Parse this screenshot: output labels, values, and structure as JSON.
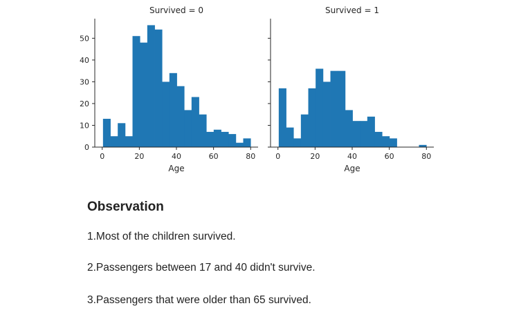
{
  "chart_data": [
    {
      "type": "bar",
      "title": "Survived = 0",
      "xlabel": "Age",
      "ylabel": "",
      "xlim": [
        -4,
        84
      ],
      "ylim": [
        0,
        59
      ],
      "bin_edges": [
        0.42,
        4.4,
        8.37,
        12.35,
        16.33,
        20.3,
        24.28,
        28.26,
        32.23,
        36.21,
        40.19,
        44.17,
        48.14,
        52.12,
        56.1,
        60.07,
        64.05,
        68.03,
        72.0,
        75.98,
        79.96
      ],
      "values": [
        13,
        5,
        11,
        5,
        51,
        48,
        56,
        54,
        30,
        34,
        28,
        17,
        23,
        15,
        7,
        8,
        7,
        6,
        2,
        4
      ],
      "xticks": [
        0,
        20,
        40,
        60,
        80
      ],
      "yticks": [
        0,
        10,
        20,
        30,
        40,
        50
      ]
    },
    {
      "type": "bar",
      "title": "Survived = 1",
      "xlabel": "Age",
      "ylabel": "",
      "xlim": [
        -4,
        84
      ],
      "ylim": [
        0,
        59
      ],
      "bin_edges": [
        0.42,
        4.4,
        8.37,
        12.35,
        16.33,
        20.3,
        24.28,
        28.26,
        32.23,
        36.21,
        40.19,
        44.17,
        48.14,
        52.12,
        56.1,
        60.07,
        64.05,
        68.03,
        72.0,
        75.98,
        79.96
      ],
      "values": [
        27,
        9,
        4,
        15,
        27,
        36,
        30,
        35,
        35,
        17,
        12,
        12,
        14,
        7,
        5,
        4,
        0,
        0,
        0,
        1
      ],
      "xticks": [
        0,
        20,
        40,
        60,
        80
      ],
      "yticks": [
        0,
        10,
        20,
        30,
        40,
        50
      ]
    }
  ],
  "colors": {
    "bar": "#1f77b4",
    "axis": "#262626"
  },
  "observation": {
    "title": "Observation",
    "lines": [
      "1.Most of the children survived.",
      "2.Passengers between 17 and 40 didn't survive.",
      "3.Passengers that were older than 65 survived."
    ]
  }
}
